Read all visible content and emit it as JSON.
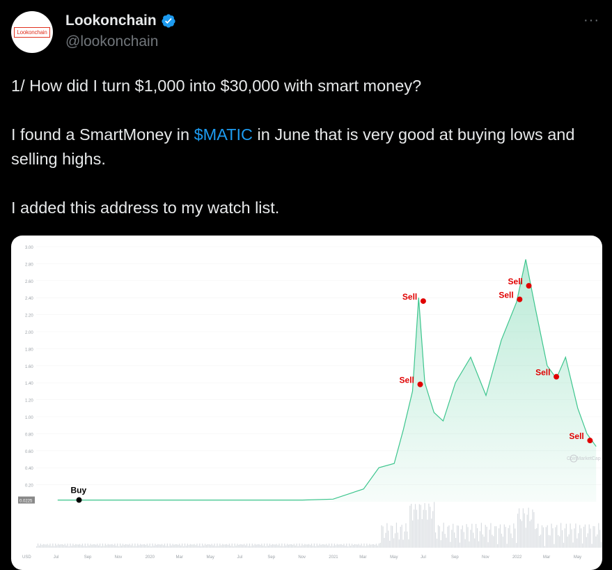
{
  "author": {
    "avatar_text": "Lookonchain",
    "name": "Lookonchain",
    "handle": "@lookonchain"
  },
  "more_label": "···",
  "tweet": {
    "line1": "1/ How did I turn $1,000 into $30,000 with smart money?",
    "p2_before": "I found a SmartMoney in ",
    "cashtag": "$MATIC",
    "p2_after": " in June that is very good at buying lows and selling highs.",
    "line3": "I added this address to my watch list."
  },
  "colors": {
    "background": "#000000",
    "text": "#e7e9ea",
    "secondary": "#71767b",
    "link": "#1d9bf0",
    "verified": "#1d9bf0",
    "chart_line": "#3cc58d",
    "marker_sell": "#e00000",
    "marker_buy": "#000000"
  },
  "chart_data": {
    "type": "area",
    "currency_label": "USD",
    "y_ticks": [
      "3.00",
      "2.80",
      "2.60",
      "2.40",
      "2.20",
      "2.00",
      "1.80",
      "1.60",
      "1.40",
      "1.20",
      "1.00",
      "0.80",
      "0.60",
      "0.40",
      "0.20"
    ],
    "ylim": [
      0,
      3.0
    ],
    "x_ticks": [
      "Jul",
      "Sep",
      "Nov",
      "2020",
      "Mar",
      "May",
      "Jul",
      "Sep",
      "Nov",
      "2021",
      "Mar",
      "May",
      "Jul",
      "Sep",
      "Nov",
      "2022",
      "Mar",
      "May"
    ],
    "current_price_label": "0.0225",
    "watermark": "CoinMarketCap",
    "series": [
      {
        "x": [
          0,
          1,
          2,
          3,
          4,
          5,
          6,
          7,
          8,
          9,
          10,
          10.5,
          11,
          11.3,
          11.6,
          11.8,
          12,
          12.3,
          12.6,
          13,
          13.5,
          14,
          14.5,
          15,
          15.3,
          15.6,
          16,
          16.3,
          16.6,
          17,
          17.3,
          17.6
        ],
        "values": [
          0.02,
          0.02,
          0.02,
          0.02,
          0.02,
          0.02,
          0.02,
          0.02,
          0.02,
          0.03,
          0.15,
          0.4,
          0.45,
          0.85,
          1.3,
          2.4,
          1.4,
          1.05,
          0.95,
          1.4,
          1.7,
          1.25,
          1.9,
          2.35,
          2.85,
          2.3,
          1.6,
          1.45,
          1.7,
          1.1,
          0.8,
          0.65
        ]
      }
    ],
    "markers": [
      {
        "label": "Buy",
        "x": 0.7,
        "y": 0.02,
        "type": "buy"
      },
      {
        "label": "Sell",
        "x": 11.85,
        "y": 1.38,
        "type": "sell"
      },
      {
        "label": "Sell",
        "x": 11.95,
        "y": 2.36,
        "type": "sell"
      },
      {
        "label": "Sell",
        "x": 15.1,
        "y": 2.38,
        "type": "sell"
      },
      {
        "label": "Sell",
        "x": 15.4,
        "y": 2.54,
        "type": "sell"
      },
      {
        "label": "Sell",
        "x": 16.3,
        "y": 1.47,
        "type": "sell"
      },
      {
        "label": "Sell",
        "x": 17.4,
        "y": 0.72,
        "type": "sell"
      }
    ]
  }
}
